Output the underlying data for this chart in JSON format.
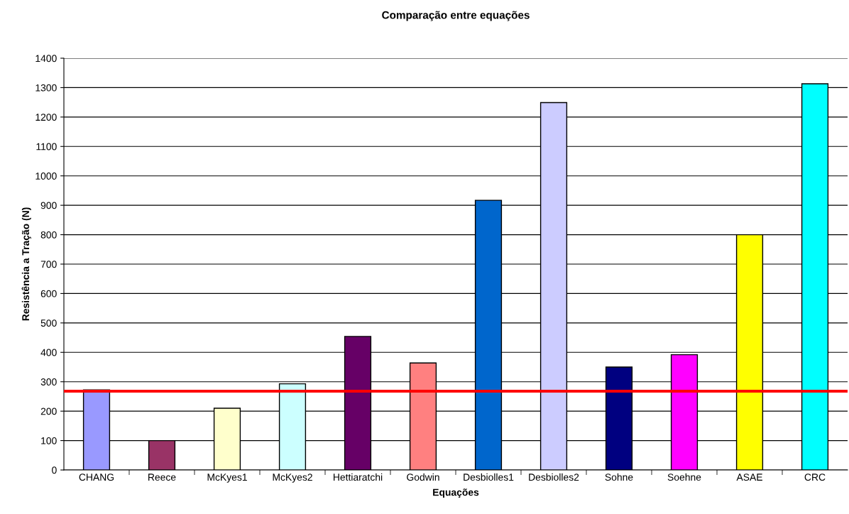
{
  "chart_data": {
    "type": "bar",
    "title": "Comparação entre equações",
    "xlabel": "Equações",
    "ylabel": "Resistência a Tração (N)",
    "categories": [
      "CHANG",
      "Reece",
      "McKyes1",
      "McKyes2",
      "Hettiaratchi",
      "Godwin",
      "Desbiolles1",
      "Desbiolles2",
      "Sohne",
      "Soehne",
      "ASAE",
      "CRC"
    ],
    "values": [
      272,
      100,
      210,
      293,
      454,
      364,
      917,
      1249,
      350,
      392,
      800,
      1313
    ],
    "colors": [
      "#9999ff",
      "#993366",
      "#ffffcc",
      "#ccffff",
      "#660066",
      "#ff8080",
      "#0066cc",
      "#ccccff",
      "#000080",
      "#ff00ff",
      "#ffff00",
      "#00ffff"
    ],
    "ylim": [
      0,
      1400
    ],
    "yticks": [
      0,
      100,
      200,
      300,
      400,
      500,
      600,
      700,
      800,
      900,
      1000,
      1100,
      1200,
      1300,
      1400
    ],
    "grid": "y",
    "ref_lines": [
      {
        "axis": "y",
        "value": 268,
        "color": "#ff0000",
        "line_style": "solid"
      }
    ]
  }
}
